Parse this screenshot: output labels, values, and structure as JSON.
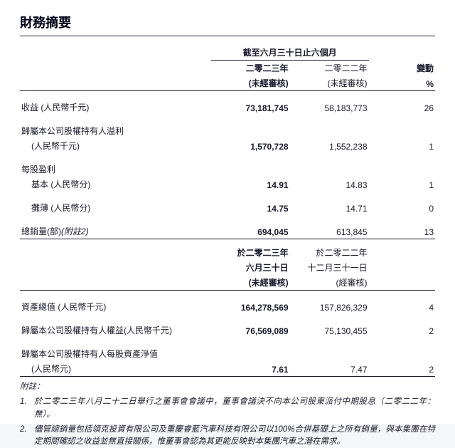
{
  "title": "財務摘要",
  "period": {
    "top_header": "截至六月三十日止六個月",
    "cur_year": "二零二三年",
    "prev_year": "二零二二年",
    "cur_aud": "(未經審核)",
    "prev_aud": "(未經審核)",
    "change_label": "變動",
    "change_unit": "%"
  },
  "rows_a": [
    {
      "label": "收益 (人民幣千元)",
      "cur": "73,181,745",
      "prev": "58,183,773",
      "chg": "26"
    },
    {
      "label": "歸屬本公司股權持有人溢利",
      "sub": "(人民幣千元)",
      "cur": "1,570,728",
      "prev": "1,552,238",
      "chg": "1"
    }
  ],
  "eps": {
    "hdr": "每股盈利",
    "basic_label": "基本 (人民幣分)",
    "basic_cur": "14.91",
    "basic_prev": "14.83",
    "basic_chg": "1",
    "diluted_label": "攤薄 (人民幣分)",
    "diluted_cur": "14.75",
    "diluted_prev": "14.71",
    "diluted_chg": "0"
  },
  "sales": {
    "label_a": "總銷量(部)",
    "label_b": "(附註2)",
    "cur": "694,045",
    "prev": "613,845",
    "chg": "13"
  },
  "balance_hdr": {
    "cur_line1": "於二零二三年",
    "cur_line2": "六月三十日",
    "cur_aud": "(未經審核)",
    "prev_line1": "於二零二二年",
    "prev_line2": "十二月三十一日",
    "prev_aud": "(經審核)"
  },
  "rows_b": [
    {
      "label": "資產總值 (人民幣千元)",
      "cur": "164,278,569",
      "prev": "157,826,329",
      "chg": "4"
    },
    {
      "label": "歸屬本公司股權持有人權益(人民幣千元)",
      "cur": "76,569,089",
      "prev": "75,130,455",
      "chg": "2"
    },
    {
      "label": "歸屬本公司股權持有人每股資產淨值",
      "sub": "(人民幣元)",
      "cur": "7.61",
      "prev": "7.47",
      "chg": "2"
    }
  ],
  "notes": {
    "hdr": "附註：",
    "n1_num": "1.",
    "n1": "於二零二三年八月二十二日舉行之董事會會議中，董事會議決不向本公司股東派付中期股息（二零二二年：無）。",
    "n2_num": "2.",
    "n2": "儘管總銷量包括領克投資有限公司及重慶睿藍汽車科技有限公司以100%合併基礎上之所有銷量，與本集團在特定期間確認之收益並無直接關係，惟董事會認為其更能反映對本集團汽車之潛在需求。"
  }
}
